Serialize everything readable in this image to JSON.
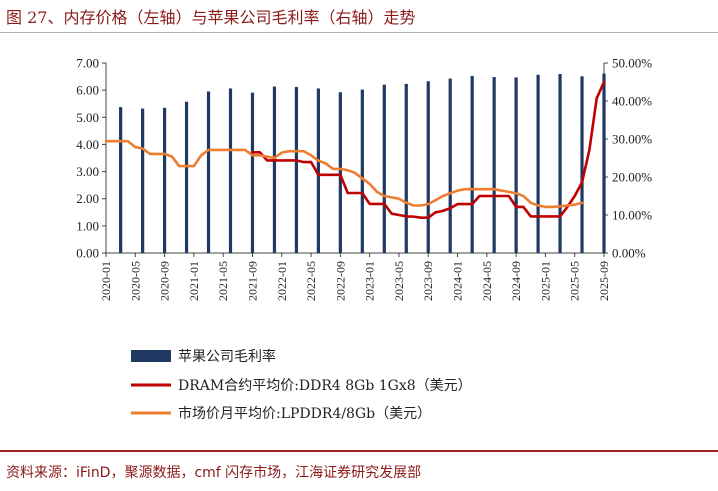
{
  "title": "图 27、内存价格（左轴）与苹果公司毛利率（右轴）走势",
  "source": "资料来源：iFinD，聚源数据，cmf 闪存市场，江海证券研究发展部",
  "chart_data": {
    "type": "bar+line",
    "x_ticks": [
      "2020-01",
      "2020-05",
      "2020-09",
      "2021-01",
      "2021-05",
      "2021-09",
      "2022-01",
      "2022-05",
      "2022-09",
      "2023-01",
      "2023-05",
      "2023-09",
      "2024-01",
      "2024-05",
      "2024-09",
      "2025-01",
      "2025-05",
      "2025-09"
    ],
    "y_left": {
      "min": 0,
      "max": 7,
      "step": 1,
      "ticks": [
        "0.00",
        "1.00",
        "2.00",
        "3.00",
        "4.00",
        "5.00",
        "6.00",
        "7.00"
      ]
    },
    "y_right": {
      "min": 0,
      "max": 50,
      "step": 10,
      "ticks": [
        "0.00%",
        "10.00%",
        "20.00%",
        "30.00%",
        "40.00%",
        "50.00%"
      ]
    },
    "grid": false,
    "legend_position": "bottom",
    "series": [
      {
        "name": "苹果公司毛利率",
        "kind": "bar",
        "axis": "right",
        "color": "#1f3864",
        "x": [
          "2020-03",
          "2020-06",
          "2020-09",
          "2020-12",
          "2021-03",
          "2021-06",
          "2021-09",
          "2021-12",
          "2022-03",
          "2022-06",
          "2022-09",
          "2022-12",
          "2023-03",
          "2023-06",
          "2023-09",
          "2023-12",
          "2024-03",
          "2024-06",
          "2024-09",
          "2024-12",
          "2025-03",
          "2025-06",
          "2025-09"
        ],
        "values": [
          38.4,
          38.0,
          38.2,
          39.8,
          42.5,
          43.3,
          42.2,
          43.8,
          43.7,
          43.3,
          42.3,
          43.0,
          44.3,
          44.5,
          45.2,
          45.9,
          46.6,
          46.3,
          46.2,
          46.9,
          47.1,
          46.5,
          47.2
        ]
      },
      {
        "name": "DRAM合约平均价:DDR4 8Gb 1Gx8（美元）",
        "kind": "line",
        "axis": "left",
        "color": "#c00000",
        "x": [
          "2021-09",
          "2021-10",
          "2021-11",
          "2021-12",
          "2022-01",
          "2022-02",
          "2022-03",
          "2022-04",
          "2022-05",
          "2022-06",
          "2022-07",
          "2022-08",
          "2022-09",
          "2022-10",
          "2022-11",
          "2022-12",
          "2023-01",
          "2023-02",
          "2023-03",
          "2023-04",
          "2023-05",
          "2023-06",
          "2023-07",
          "2023-08",
          "2023-09",
          "2023-10",
          "2023-11",
          "2023-12",
          "2024-01",
          "2024-02",
          "2024-03",
          "2024-04",
          "2024-05",
          "2024-06",
          "2024-07",
          "2024-08",
          "2024-09",
          "2024-10",
          "2024-11",
          "2024-12",
          "2025-01",
          "2025-02",
          "2025-03",
          "2025-04",
          "2025-05",
          "2025-06",
          "2025-07",
          "2025-08",
          "2025-09"
        ],
        "values": [
          3.71,
          3.71,
          3.41,
          3.41,
          3.41,
          3.41,
          3.41,
          3.35,
          3.35,
          2.88,
          2.88,
          2.88,
          2.88,
          2.21,
          2.21,
          2.21,
          1.81,
          1.81,
          1.81,
          1.45,
          1.4,
          1.35,
          1.34,
          1.3,
          1.3,
          1.5,
          1.55,
          1.65,
          1.8,
          1.8,
          1.8,
          2.1,
          2.1,
          2.1,
          2.1,
          2.1,
          1.7,
          1.7,
          1.35,
          1.35,
          1.35,
          1.35,
          1.35,
          1.7,
          2.1,
          2.6,
          3.8,
          5.7,
          6.3
        ]
      },
      {
        "name": "市场价月平均价:LPDDR4/8Gb（美元）",
        "kind": "line",
        "axis": "left",
        "color": "#ed7d31",
        "x": [
          "2020-01",
          "2020-02",
          "2020-03",
          "2020-04",
          "2020-05",
          "2020-06",
          "2020-07",
          "2020-08",
          "2020-09",
          "2020-10",
          "2020-11",
          "2020-12",
          "2021-01",
          "2021-02",
          "2021-03",
          "2021-04",
          "2021-05",
          "2021-06",
          "2021-07",
          "2021-08",
          "2021-09",
          "2021-10",
          "2021-11",
          "2021-12",
          "2022-01",
          "2022-02",
          "2022-03",
          "2022-04",
          "2022-05",
          "2022-06",
          "2022-07",
          "2022-08",
          "2022-09",
          "2022-10",
          "2022-11",
          "2022-12",
          "2023-01",
          "2023-02",
          "2023-03",
          "2023-04",
          "2023-05",
          "2023-06",
          "2023-07",
          "2023-08",
          "2023-09",
          "2023-10",
          "2023-11",
          "2023-12",
          "2024-01",
          "2024-02",
          "2024-03",
          "2024-04",
          "2024-05",
          "2024-06",
          "2024-07",
          "2024-08",
          "2024-09",
          "2024-10",
          "2024-11",
          "2024-12",
          "2025-01",
          "2025-02",
          "2025-03",
          "2025-04",
          "2025-05",
          "2025-06"
        ],
        "values": [
          4.12,
          4.12,
          4.12,
          4.12,
          3.9,
          3.85,
          3.65,
          3.65,
          3.65,
          3.55,
          3.2,
          3.2,
          3.2,
          3.6,
          3.8,
          3.8,
          3.8,
          3.8,
          3.8,
          3.8,
          3.6,
          3.6,
          3.55,
          3.5,
          3.7,
          3.75,
          3.75,
          3.75,
          3.6,
          3.4,
          3.3,
          3.1,
          3.1,
          3.05,
          2.95,
          2.75,
          2.55,
          2.25,
          2.1,
          2.05,
          2.0,
          1.85,
          1.75,
          1.75,
          1.8,
          1.95,
          2.1,
          2.2,
          2.3,
          2.35,
          2.35,
          2.35,
          2.35,
          2.35,
          2.3,
          2.25,
          2.2,
          2.1,
          1.85,
          1.75,
          1.7,
          1.7,
          1.72,
          1.75,
          1.78,
          1.85
        ]
      }
    ]
  }
}
